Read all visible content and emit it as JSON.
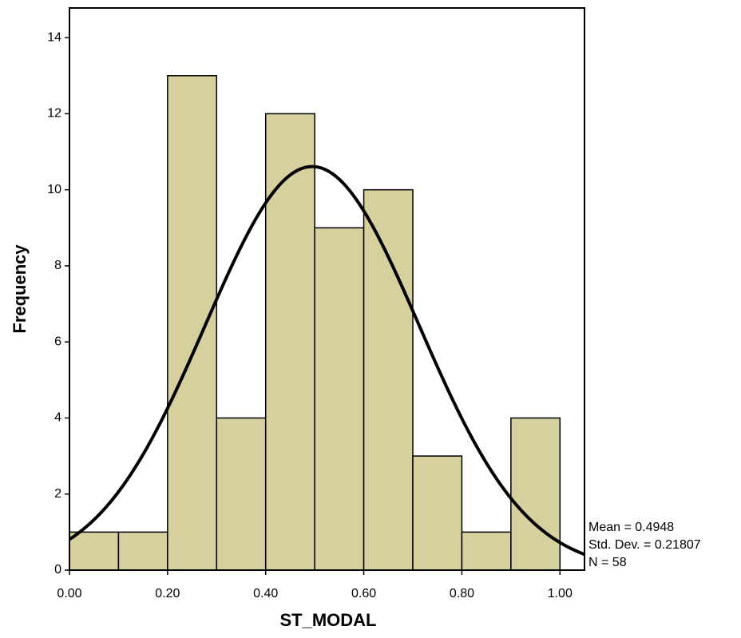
{
  "chart_data": {
    "type": "histogram",
    "x_label": "ST_MODAL",
    "y_label": "Frequency",
    "bins": [
      0,
      0.1,
      0.2,
      0.3,
      0.4,
      0.5,
      0.6,
      0.7,
      0.8,
      0.9,
      1.0
    ],
    "values": [
      1,
      1,
      13,
      4,
      12,
      9,
      10,
      3,
      1,
      4
    ],
    "color": "#d6d09e",
    "xlim": [
      0,
      1.05
    ],
    "ylim": [
      0,
      14.78
    ],
    "xticks": [
      {
        "value": 0,
        "label": "0.00"
      },
      {
        "value": 0.2,
        "label": "0.20"
      },
      {
        "value": 0.4,
        "label": "0.40"
      },
      {
        "value": 0.6,
        "label": "0.60"
      },
      {
        "value": 0.8,
        "label": "0.80"
      },
      {
        "value": 1.0,
        "label": "1.00"
      }
    ],
    "yticks": [
      0,
      2,
      4,
      6,
      8,
      10,
      12,
      14
    ],
    "normal_curve": {
      "mean": 0.4948,
      "std_dev": 0.21807,
      "n": 58,
      "labels": [
        "Mean = 0.4948",
        "Std. Dev. = 0.21807",
        "N = 58"
      ]
    }
  }
}
